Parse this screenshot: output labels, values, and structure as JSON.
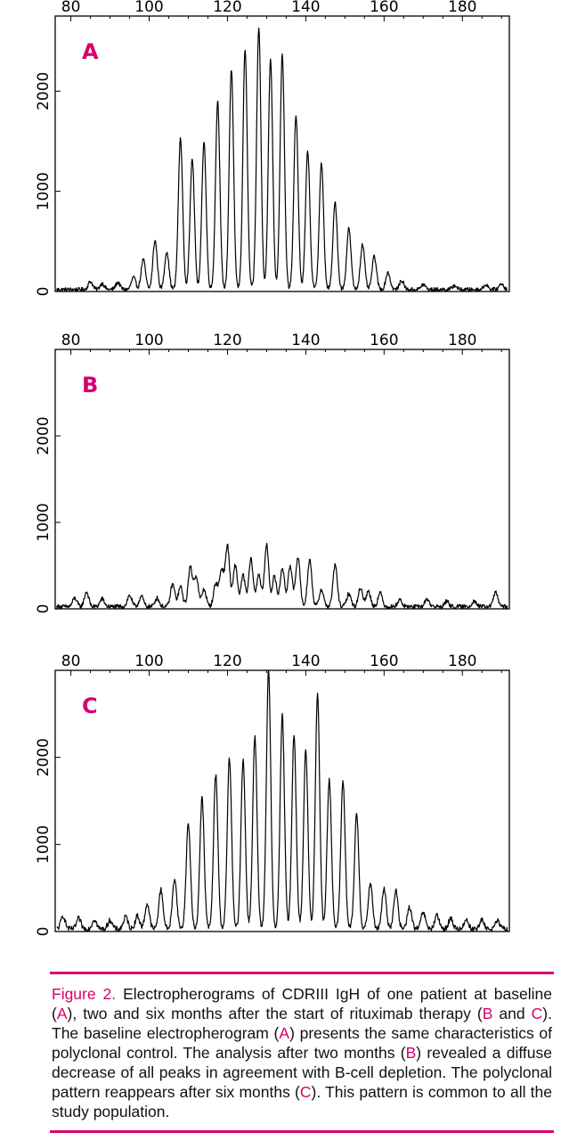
{
  "chart_data": [
    {
      "type": "line",
      "panel_label": "A",
      "xlim": [
        76,
        192
      ],
      "ylim": [
        0,
        2750
      ],
      "x_ticks": [
        80,
        100,
        120,
        140,
        160,
        180
      ],
      "y_ticks": [
        0,
        1000,
        2000
      ],
      "baseline_noise": 40,
      "peaks": [
        {
          "x": 85,
          "y": 80
        },
        {
          "x": 88,
          "y": 60
        },
        {
          "x": 92,
          "y": 70
        },
        {
          "x": 96,
          "y": 120
        },
        {
          "x": 98.5,
          "y": 300
        },
        {
          "x": 101.5,
          "y": 490
        },
        {
          "x": 104.5,
          "y": 380
        },
        {
          "x": 108,
          "y": 1510
        },
        {
          "x": 111,
          "y": 1320
        },
        {
          "x": 114,
          "y": 1480
        },
        {
          "x": 117.5,
          "y": 1880
        },
        {
          "x": 121,
          "y": 2200
        },
        {
          "x": 124.5,
          "y": 2400
        },
        {
          "x": 128,
          "y": 2620
        },
        {
          "x": 131,
          "y": 2300
        },
        {
          "x": 134,
          "y": 2350
        },
        {
          "x": 137.5,
          "y": 1740
        },
        {
          "x": 140.5,
          "y": 1380
        },
        {
          "x": 144,
          "y": 1260
        },
        {
          "x": 147.5,
          "y": 870
        },
        {
          "x": 151,
          "y": 610
        },
        {
          "x": 154.5,
          "y": 450
        },
        {
          "x": 157.5,
          "y": 330
        },
        {
          "x": 161,
          "y": 170
        },
        {
          "x": 164.5,
          "y": 90
        },
        {
          "x": 170,
          "y": 50
        },
        {
          "x": 178,
          "y": 40
        },
        {
          "x": 186,
          "y": 50
        },
        {
          "x": 190,
          "y": 60
        }
      ]
    },
    {
      "type": "line",
      "panel_label": "B",
      "xlim": [
        76,
        192
      ],
      "ylim": [
        0,
        3000
      ],
      "x_ticks": [
        80,
        100,
        120,
        140,
        160,
        180
      ],
      "y_ticks": [
        0,
        1000,
        2000
      ],
      "baseline_noise": 50,
      "peaks": [
        {
          "x": 81,
          "y": 100
        },
        {
          "x": 84,
          "y": 170
        },
        {
          "x": 88,
          "y": 90
        },
        {
          "x": 95,
          "y": 130
        },
        {
          "x": 98,
          "y": 120
        },
        {
          "x": 102,
          "y": 100
        },
        {
          "x": 106,
          "y": 260
        },
        {
          "x": 108,
          "y": 230
        },
        {
          "x": 110.5,
          "y": 450
        },
        {
          "x": 112,
          "y": 350
        },
        {
          "x": 114,
          "y": 200
        },
        {
          "x": 117,
          "y": 260
        },
        {
          "x": 118.5,
          "y": 420
        },
        {
          "x": 120,
          "y": 700
        },
        {
          "x": 122,
          "y": 480
        },
        {
          "x": 124,
          "y": 360
        },
        {
          "x": 126,
          "y": 550
        },
        {
          "x": 128,
          "y": 380
        },
        {
          "x": 130,
          "y": 710
        },
        {
          "x": 132,
          "y": 350
        },
        {
          "x": 134,
          "y": 450
        },
        {
          "x": 136,
          "y": 480
        },
        {
          "x": 138,
          "y": 580
        },
        {
          "x": 141,
          "y": 540
        },
        {
          "x": 144,
          "y": 200
        },
        {
          "x": 147.5,
          "y": 480
        },
        {
          "x": 151,
          "y": 150
        },
        {
          "x": 154,
          "y": 220
        },
        {
          "x": 156,
          "y": 180
        },
        {
          "x": 159,
          "y": 160
        },
        {
          "x": 164,
          "y": 80
        },
        {
          "x": 171,
          "y": 90
        },
        {
          "x": 176,
          "y": 60
        },
        {
          "x": 183,
          "y": 70
        },
        {
          "x": 188.5,
          "y": 170
        }
      ]
    },
    {
      "type": "line",
      "panel_label": "C",
      "xlim": [
        76,
        192
      ],
      "ylim": [
        0,
        3000
      ],
      "x_ticks": [
        80,
        100,
        120,
        140,
        160,
        180
      ],
      "y_ticks": [
        0,
        1000,
        2000
      ],
      "baseline_noise": 60,
      "peaks": [
        {
          "x": 78,
          "y": 150
        },
        {
          "x": 82,
          "y": 120
        },
        {
          "x": 86,
          "y": 110
        },
        {
          "x": 90,
          "y": 100
        },
        {
          "x": 94,
          "y": 140
        },
        {
          "x": 97,
          "y": 150
        },
        {
          "x": 99.5,
          "y": 290
        },
        {
          "x": 103,
          "y": 450
        },
        {
          "x": 106.5,
          "y": 580
        },
        {
          "x": 110,
          "y": 1210
        },
        {
          "x": 113.5,
          "y": 1500
        },
        {
          "x": 117,
          "y": 1770
        },
        {
          "x": 120.5,
          "y": 1960
        },
        {
          "x": 124,
          "y": 1950
        },
        {
          "x": 127,
          "y": 2200
        },
        {
          "x": 130.5,
          "y": 2990
        },
        {
          "x": 134,
          "y": 2450
        },
        {
          "x": 137,
          "y": 2240
        },
        {
          "x": 140,
          "y": 2050
        },
        {
          "x": 143,
          "y": 2710
        },
        {
          "x": 146,
          "y": 1720
        },
        {
          "x": 149.5,
          "y": 1700
        },
        {
          "x": 153,
          "y": 1320
        },
        {
          "x": 156.5,
          "y": 520
        },
        {
          "x": 160,
          "y": 460
        },
        {
          "x": 163,
          "y": 440
        },
        {
          "x": 166.5,
          "y": 250
        },
        {
          "x": 170,
          "y": 190
        },
        {
          "x": 173.5,
          "y": 150
        },
        {
          "x": 177,
          "y": 120
        },
        {
          "x": 181,
          "y": 110
        },
        {
          "x": 185,
          "y": 100
        },
        {
          "x": 189,
          "y": 90
        }
      ]
    }
  ],
  "caption": {
    "label": "Figure 2.",
    "segments": [
      {
        "text": " Electropherograms of CDRIII IgH of one patient at baseline (",
        "ref": false
      },
      {
        "text": "A",
        "ref": true
      },
      {
        "text": "), two and six months after the start of rituximab therapy (",
        "ref": false
      },
      {
        "text": "B",
        "ref": true
      },
      {
        "text": " and ",
        "ref": false
      },
      {
        "text": "C",
        "ref": true
      },
      {
        "text": "). The baseline electropherogram (",
        "ref": false
      },
      {
        "text": "A",
        "ref": true
      },
      {
        "text": ") presents the same characteristics of polyclonal control. The analysis after two months (",
        "ref": false
      },
      {
        "text": "B",
        "ref": true
      },
      {
        "text": ") revealed a diffuse decrease of all peaks in agreement with B-cell depletion. The polyclonal pattern reappears after six months (",
        "ref": false
      },
      {
        "text": "C",
        "ref": true
      },
      {
        "text": "). This pattern is common to all the study population.",
        "ref": false
      }
    ]
  },
  "colors": {
    "accent": "#d6006e",
    "trace": "#000000",
    "text": "#111111"
  }
}
